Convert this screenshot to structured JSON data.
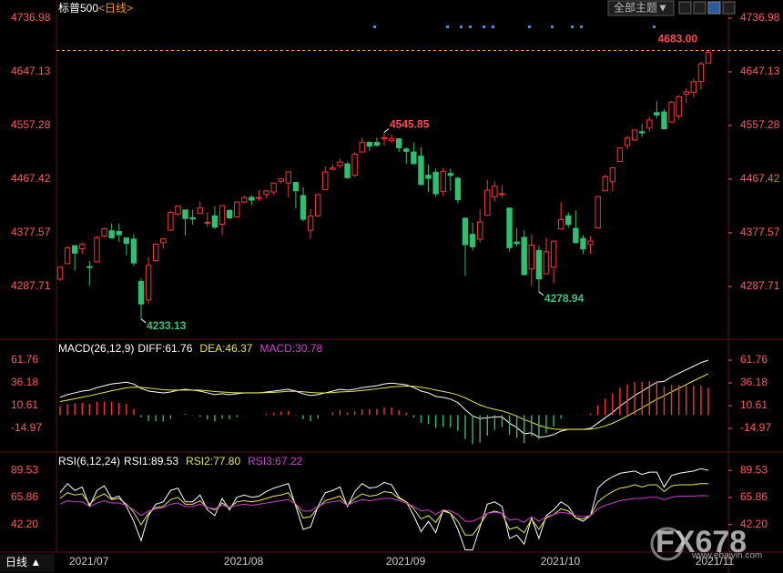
{
  "header": {
    "title": "标普500",
    "period": "<日线>",
    "theme_button": "全部主题▼"
  },
  "footer": {
    "period": "日线 ▲"
  },
  "watermark": {
    "logo": "FX678",
    "url": "www.ebaiyin.com"
  },
  "chart_data": [
    {
      "type": "candlestick",
      "categories": [
        "2021/07",
        null,
        null,
        null,
        null,
        null,
        null,
        null,
        null,
        null,
        null,
        null,
        null,
        null,
        null,
        null,
        null,
        null,
        null,
        null,
        null,
        "2021/08",
        null,
        null,
        null,
        null,
        null,
        null,
        null,
        null,
        null,
        null,
        null,
        null,
        null,
        null,
        null,
        null,
        null,
        null,
        null,
        null,
        null,
        "2021/09",
        null,
        null,
        null,
        null,
        null,
        null,
        null,
        null,
        null,
        null,
        null,
        null,
        null,
        null,
        null,
        null,
        null,
        null,
        null,
        null,
        "2021/10",
        null,
        null,
        null,
        null,
        null,
        null,
        null,
        null,
        null,
        null,
        null,
        null,
        null,
        null,
        null,
        null,
        null,
        null,
        null,
        null,
        "2021/11",
        null,
        null,
        null
      ],
      "open": [
        4300,
        4326,
        4356,
        4351,
        4321,
        4329,
        4372,
        4381,
        4380,
        4369,
        4367,
        4296,
        4265,
        4331,
        4361,
        4382,
        4409,
        4416,
        4403,
        4410,
        4395,
        4406,
        4392,
        4415,
        4404,
        4429,
        4437,
        4435,
        4442,
        4446,
        4464,
        4461,
        4462,
        4440,
        4382,
        4406,
        4450,
        4484,
        4490,
        4493,
        4474,
        4513,
        4529,
        4529,
        4535,
        4532,
        4535,
        4518,
        4513,
        4506,
        4474,
        4479,
        4447,
        4477,
        4469,
        4402,
        4375,
        4367,
        4407,
        4438,
        4442,
        4419,
        4362,
        4370,
        4317,
        4348,
        4309,
        4320,
        4384,
        4406,
        4385,
        4368,
        4358,
        4386,
        4448,
        4463,
        4497,
        4524,
        4533,
        4547,
        4553,
        4579,
        4580,
        4563,
        4573,
        4610,
        4613,
        4631,
        4662
      ],
      "high": [
        4321,
        4355,
        4356,
        4361,
        4330,
        4372,
        4386,
        4393,
        4393,
        4370,
        4375,
        4301,
        4337,
        4359,
        4369,
        4415,
        4423,
        4416,
        4416,
        4430,
        4412,
        4422,
        4424,
        4417,
        4430,
        4440,
        4440,
        4449,
        4449,
        4461,
        4468,
        4480,
        4462,
        4454,
        4418,
        4443,
        4489,
        4493,
        4501,
        4496,
        4513,
        4537,
        4531,
        4537,
        4545.85,
        4542,
        4535,
        4521,
        4529,
        4521,
        4492,
        4485,
        4486,
        4485,
        4471,
        4403,
        4395,
        4417,
        4466,
        4464,
        4457,
        4419,
        4385,
        4382,
        4375,
        4356,
        4369,
        4365,
        4429,
        4412,
        4415,
        4374,
        4372,
        4439,
        4475,
        4488,
        4521,
        4540,
        4550,
        4560,
        4572,
        4598,
        4585,
        4598,
        4608,
        4620,
        4636,
        4664,
        4683
      ],
      "low": [
        4297,
        4325,
        4314,
        4342,
        4289,
        4328,
        4370,
        4368,
        4362,
        4340,
        4322,
        4233.13,
        4259,
        4329,
        4351,
        4381,
        4406,
        4373,
        4391,
        4409,
        4387,
        4384,
        4374,
        4400,
        4404,
        4428,
        4424,
        4431,
        4436,
        4441,
        4461,
        4437,
        4418,
        4397,
        4368,
        4404,
        4450,
        4482,
        4486,
        4468,
        4471,
        4513,
        4515,
        4522,
        4524,
        4529,
        4513,
        4493,
        4493,
        4457,
        4446,
        4438,
        4439,
        4448,
        4427,
        4305,
        4348,
        4361,
        4406,
        4430,
        4436,
        4346,
        4355,
        4306,
        4288,
        4278.94,
        4309,
        4293,
        4384,
        4386,
        4360,
        4342,
        4342,
        4386,
        4448,
        4447,
        4497,
        4517,
        4531,
        4538,
        4547,
        4569,
        4551,
        4563,
        4567,
        4595,
        4604,
        4617,
        4662
      ],
      "close": [
        4319.94,
        4352.34,
        4343.54,
        4358.13,
        4320.82,
        4369.55,
        4384.63,
        4369.21,
        4374.3,
        4360.03,
        4327.16,
        4258.49,
        4323.06,
        4358.69,
        4367.48,
        4411.79,
        4422.3,
        4401.46,
        4400.64,
        4419.15,
        4395.26,
        4387.16,
        4423.15,
        4402.66,
        4429.1,
        4436.52,
        4432.35,
        4436.75,
        4447.7,
        4460.83,
        4468.0,
        4479.71,
        4448.08,
        4400.27,
        4405.8,
        4441.67,
        4479.53,
        4486.23,
        4496.19,
        4470.0,
        4509.37,
        4528.79,
        4522.68,
        4524.09,
        4536.95,
        4535.43,
        4520.03,
        4514.07,
        4493.28,
        4458.58,
        4468.73,
        4443.05,
        4480.7,
        4473.75,
        4432.99,
        4357.73,
        4354.19,
        4395.64,
        4448.98,
        4455.48,
        4443.11,
        4352.63,
        4359.46,
        4307.54,
        4357.04,
        4300.46,
        4345.72,
        4363.55,
        4399.76,
        4391.34,
        4361.19,
        4350.65,
        4363.8,
        4438.26,
        4471.37,
        4486.46,
        4519.63,
        4536.19,
        4549.78,
        4544.9,
        4566.48,
        4574.79,
        4551.68,
        4596.42,
        4605.38,
        4613.67,
        4630.65,
        4660.57,
        4680.06
      ],
      "up_color": "#ff3232",
      "down_color": "#2fbf71",
      "axis_color": "#ff5a5a",
      "ylim": [
        4203.9,
        4749.2
      ],
      "yticks": [
        4736.98,
        4647.13,
        4557.28,
        4467.42,
        4377.57,
        4287.71
      ],
      "annotations": [
        {
          "value": 4545.85,
          "label": "4545.85",
          "color": "#ff4d4d"
        },
        {
          "value": 4233.13,
          "label": "4233.13",
          "color": "#3cc47b"
        },
        {
          "value": 4278.94,
          "label": "4278.94",
          "color": "#3cc47b"
        },
        {
          "value": 4683,
          "label": "4683.00",
          "color": "#ff4d4d",
          "price_line": true
        }
      ]
    },
    {
      "type": "macd",
      "title": "MACD(26,12,9)",
      "series": [
        {
          "name": "DIFF:61.76",
          "color": "#ffffff",
          "values": [
            20,
            23,
            25,
            27,
            28,
            31,
            33,
            35,
            36,
            37,
            35,
            30,
            27,
            26,
            25,
            26,
            28,
            29,
            28,
            27,
            25,
            23,
            24,
            23,
            24,
            25,
            25,
            25,
            26,
            27,
            28,
            29,
            27,
            24,
            22,
            23,
            25,
            27,
            29,
            28,
            29,
            31,
            32,
            33,
            35,
            36,
            35,
            34,
            31,
            27,
            25,
            21,
            20,
            18,
            14,
            6,
            -1,
            -4,
            -3,
            -2,
            -2,
            -9,
            -14,
            -21,
            -20,
            -25,
            -24,
            -22,
            -18,
            -16,
            -16,
            -16,
            -15,
            -9,
            -3,
            3,
            10,
            16,
            22,
            27,
            32,
            37,
            38,
            43,
            47,
            51,
            55,
            59,
            61.76
          ]
        },
        {
          "name": "DEA:46.37",
          "color": "#e8e84a",
          "values": [
            15.2,
            16.8,
            18.4,
            20.1,
            21.7,
            23.6,
            25.5,
            27.4,
            29.1,
            30.7,
            31.5,
            31.2,
            30.4,
            29.5,
            28.6,
            28.1,
            28.1,
            28.3,
            28.2,
            28.0,
            27.4,
            26.5,
            26.0,
            25.4,
            25.1,
            25.1,
            25.1,
            25.1,
            25.3,
            25.6,
            26.1,
            26.7,
            26.7,
            26.2,
            25.4,
            24.9,
            24.9,
            25.3,
            26.1,
            26.4,
            26.9,
            27.8,
            28.6,
            29.5,
            30.6,
            31.7,
            32.3,
            32.7,
            32.4,
            31.3,
            30.0,
            28.2,
            26.6,
            24.9,
            22.7,
            19.4,
            15.3,
            11.4,
            8.5,
            6.4,
            4.7,
            2.0,
            -1.2,
            -5.2,
            -8.1,
            -11.5,
            -14.0,
            -15.6,
            -16.1,
            -16.1,
            -16.1,
            -16.1,
            -15.9,
            -14.5,
            -12.2,
            -9.2,
            -5.4,
            -1.1,
            3.5,
            8.2,
            13.0,
            17.8,
            21.8,
            26.1,
            30.2,
            34.4,
            38.5,
            42.6,
            46.37
          ]
        },
        {
          "name": "MACD:30.78",
          "color": "#d040d0",
          "bars": true,
          "values": [
            9.6,
            12.4,
            13.2,
            13.8,
            12.6,
            14.8,
            15,
            15.2,
            13.8,
            12.6,
            7,
            -2.4,
            -6.8,
            -7,
            -7.2,
            -4.2,
            -0.2,
            1.4,
            -0.4,
            -2,
            -4.8,
            -7,
            -4,
            -4.8,
            -2.2,
            -0.2,
            -0.2,
            -0.2,
            1.4,
            2.8,
            3.8,
            4.6,
            0.6,
            -4.4,
            -6.8,
            -3.8,
            0.2,
            3.4,
            5.8,
            3.2,
            4.2,
            6.4,
            6.8,
            7,
            8.8,
            8.6,
            5.4,
            2.6,
            -2.8,
            -8.6,
            -10,
            -14.4,
            -13.2,
            -13.8,
            -17.4,
            -26.8,
            -32.6,
            -30.8,
            -23,
            -16.8,
            -13.4,
            -22,
            -25.6,
            -31.6,
            -23.8,
            -27,
            -20,
            -12.8,
            -3.8,
            0.2,
            0.2,
            0.2,
            1.8,
            11,
            18.4,
            24.4,
            30.8,
            34.2,
            37,
            37.6,
            38,
            38.4,
            32.4,
            33.8,
            33.6,
            33.2,
            33,
            32.8,
            30.78
          ]
        }
      ],
      "up_color": "#ff3232",
      "down_color": "#2fbf71",
      "axis_color": "#ff5a5a",
      "ylim": [
        -39.5,
        80.2
      ],
      "yticks": [
        61.76,
        36.18,
        10.61,
        -14.97
      ]
    },
    {
      "type": "line",
      "title": "RSI(6,12,24)",
      "series": [
        {
          "name": "RSI1:89.53",
          "color": "#ffffff",
          "values": [
            70,
            78,
            72,
            75,
            58,
            72,
            76,
            65,
            67,
            58,
            45,
            28,
            50,
            60,
            62,
            72,
            74,
            62,
            62,
            68,
            55,
            50,
            65,
            55,
            66,
            68,
            66,
            67,
            71,
            74,
            76,
            78,
            58,
            38,
            40,
            58,
            70,
            72,
            75,
            58,
            71,
            78,
            74,
            75,
            79,
            77,
            66,
            62,
            50,
            36,
            45,
            35,
            55,
            52,
            38,
            20,
            20,
            40,
            60,
            62,
            58,
            30,
            33,
            25,
            48,
            30,
            50,
            55,
            62,
            58,
            48,
            45,
            50,
            74,
            80,
            84,
            87,
            88,
            89,
            86,
            88,
            88,
            75,
            85,
            87,
            88,
            89,
            91,
            89.53
          ]
        },
        {
          "name": "RSI2:77.80",
          "color": "#e8e84a",
          "values": [
            65,
            70,
            68,
            69,
            60,
            66,
            69,
            64,
            65,
            60,
            53,
            42,
            52,
            57,
            58,
            64,
            66,
            60,
            60,
            63,
            57,
            55,
            61,
            57,
            62,
            63,
            62,
            63,
            65,
            67,
            68,
            70,
            60,
            48,
            49,
            57,
            63,
            65,
            67,
            59,
            65,
            69,
            67,
            68,
            71,
            70,
            65,
            62,
            56,
            47,
            50,
            44,
            54,
            52,
            45,
            33,
            33,
            42,
            52,
            54,
            52,
            38,
            40,
            35,
            47,
            38,
            48,
            51,
            56,
            54,
            48,
            47,
            50,
            62,
            67,
            71,
            74,
            75,
            77,
            75,
            77,
            77,
            71,
            76,
            77,
            77,
            77,
            78,
            77.8
          ]
        },
        {
          "name": "RSI3:67.22",
          "color": "#d040d0",
          "values": [
            60,
            63,
            62,
            62,
            58,
            61,
            63,
            61,
            61,
            59,
            55,
            50,
            54,
            56,
            57,
            60,
            61,
            58,
            58,
            60,
            57,
            56,
            59,
            57,
            59,
            60,
            59,
            60,
            61,
            62,
            63,
            64,
            60,
            54,
            54,
            58,
            61,
            62,
            63,
            59,
            62,
            64,
            63,
            64,
            65,
            65,
            63,
            61,
            58,
            54,
            55,
            51,
            55,
            54,
            51,
            45,
            45,
            48,
            52,
            53,
            52,
            46,
            47,
            44,
            49,
            45,
            49,
            51,
            53,
            52,
            50,
            49,
            50,
            56,
            59,
            61,
            63,
            64,
            65,
            65,
            66,
            66,
            64,
            66,
            67,
            67,
            67,
            67.5,
            67.22
          ]
        }
      ],
      "axis_color": "#ff5a5a",
      "ylim": [
        19.7,
        101.6
      ],
      "yticks": [
        89.53,
        65.86,
        {
          "value": 42.2,
          "label": "42.20"
        }
      ]
    }
  ]
}
